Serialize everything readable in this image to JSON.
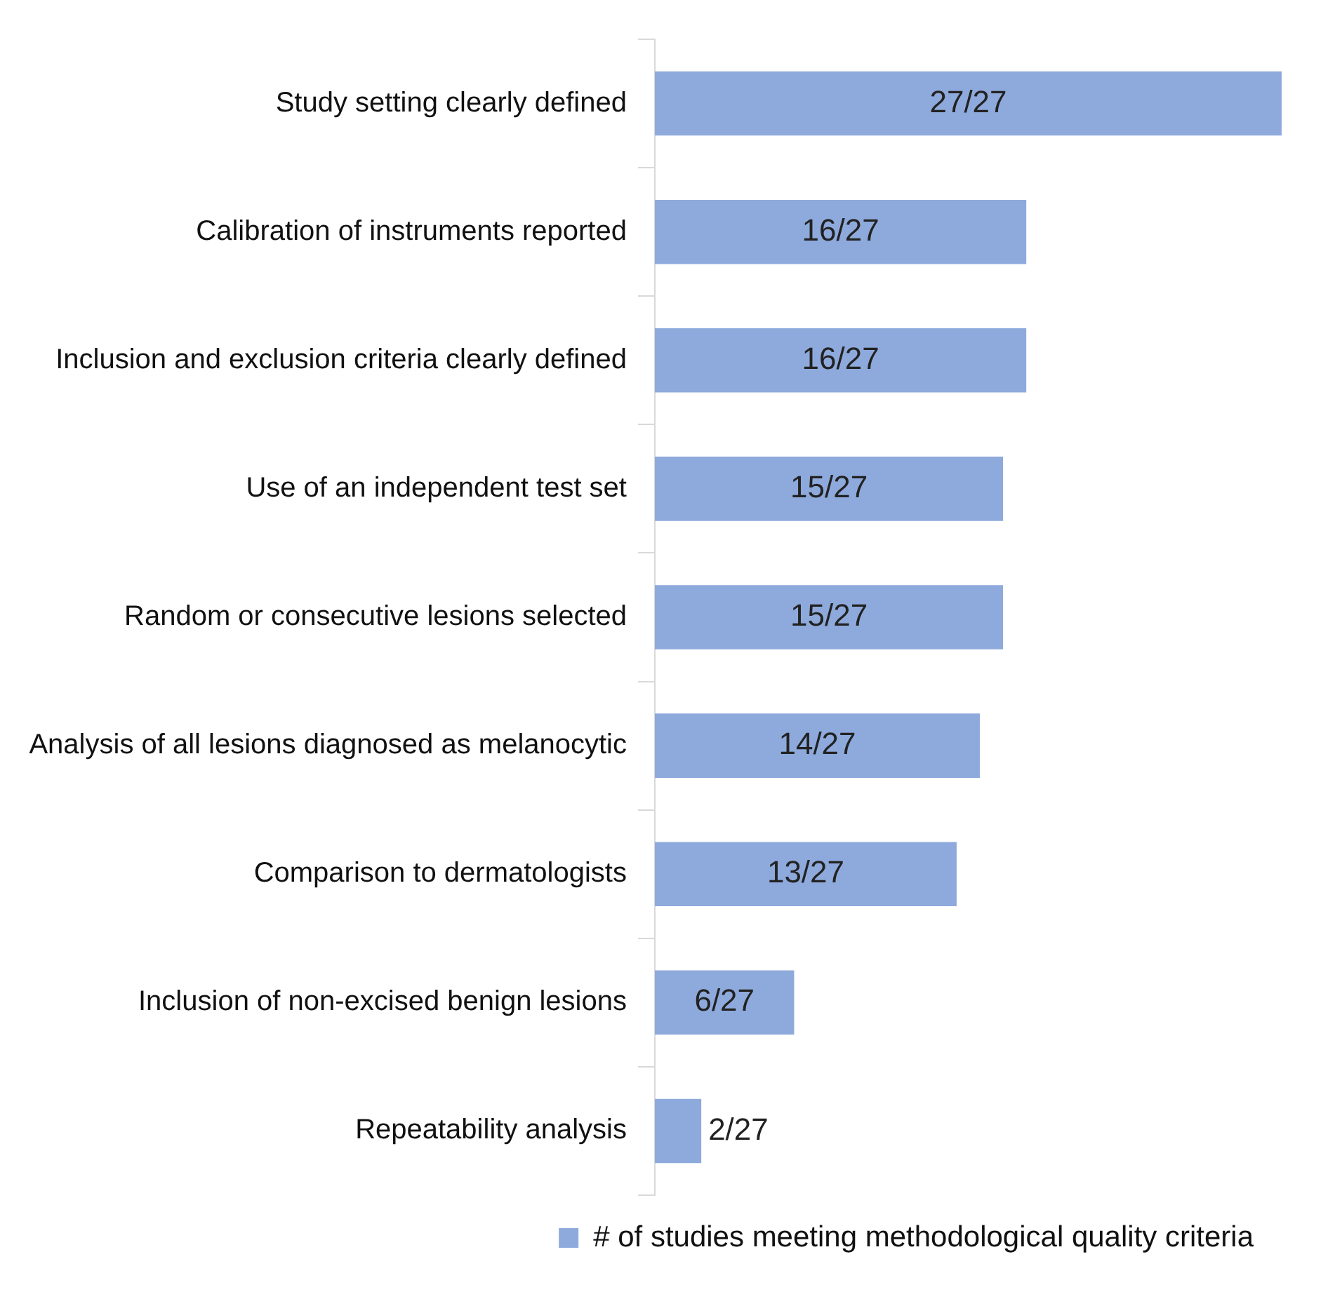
{
  "chart_data": {
    "type": "bar",
    "orientation": "horizontal",
    "categories": [
      "Study setting clearly defined",
      "Calibration of instruments reported",
      "Inclusion and exclusion criteria clearly defined",
      "Use of an independent test set",
      "Random or consecutive lesions selected",
      "Analysis of all lesions diagnosed as melanocytic",
      "Comparison to dermatologists",
      "Inclusion of non-excised benign lesions",
      "Repeatability analysis"
    ],
    "series": [
      {
        "name": "# of studies meeting methodological quality criteria",
        "color": "#8eaadc",
        "values": [
          27,
          16,
          16,
          15,
          15,
          14,
          13,
          6,
          2
        ],
        "value_labels": [
          "27/27",
          "16/27",
          "16/27",
          "15/27",
          "15/27",
          "14/27",
          "13/27",
          "6/27",
          "2/27"
        ]
      }
    ],
    "legend": "bottom",
    "grid": false,
    "tick_labels": "y"
  }
}
